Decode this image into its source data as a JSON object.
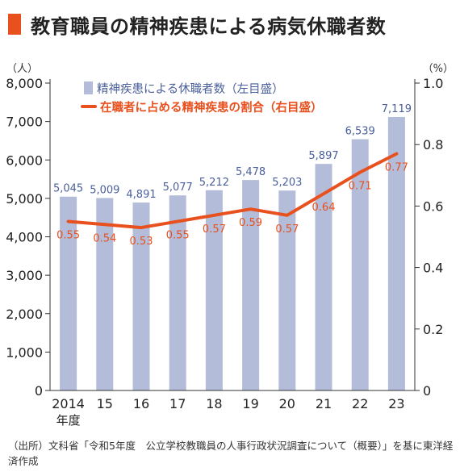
{
  "title": "教育職員の精神疾患による病気休職者数",
  "accent_color": "#e8501e",
  "bar_color": "#b3bcd9",
  "bar_label_color": "#4a5f9b",
  "source_note": "（出所）文科省「令和5年度　公立学校教職員の人事行政状況調査について（概要）」を基に東洋経済作成",
  "chart_data": {
    "type": "bar+line",
    "categories": [
      "2014",
      "15",
      "16",
      "17",
      "18",
      "19",
      "20",
      "21",
      "22",
      "23"
    ],
    "first_category_sublabel": "年度",
    "left_axis": {
      "unit": "（人）",
      "ylim": [
        0,
        8000
      ],
      "ticks": [
        "0",
        "1,000",
        "2,000",
        "3,000",
        "4,000",
        "5,000",
        "6,000",
        "7,000",
        "8,000"
      ]
    },
    "right_axis": {
      "unit": "（%）",
      "ylim": [
        0,
        1.0
      ],
      "ticks": [
        "0",
        "0.2",
        "0.4",
        "0.6",
        "0.8",
        "1.0"
      ]
    },
    "series": [
      {
        "name": "精神疾患による休職者数（左目盛）",
        "kind": "bar",
        "axis": "left",
        "values": [
          5045,
          5009,
          4891,
          5077,
          5212,
          5478,
          5203,
          5897,
          6539,
          7119
        ],
        "labels": [
          "5,045",
          "5,009",
          "4,891",
          "5,077",
          "5,212",
          "5,478",
          "5,203",
          "5,897",
          "6,539",
          "7,119"
        ]
      },
      {
        "name": "在職者に占める精神疾患の割合（右目盛）",
        "kind": "line",
        "axis": "right",
        "values": [
          0.55,
          0.54,
          0.53,
          0.55,
          0.57,
          0.59,
          0.57,
          0.64,
          0.71,
          0.77
        ],
        "labels": [
          "0.55",
          "0.54",
          "0.53",
          "0.55",
          "0.57",
          "0.59",
          "0.57",
          "0.64",
          "0.71",
          "0.77"
        ]
      }
    ],
    "legend_position": "top-left",
    "grid": false
  }
}
